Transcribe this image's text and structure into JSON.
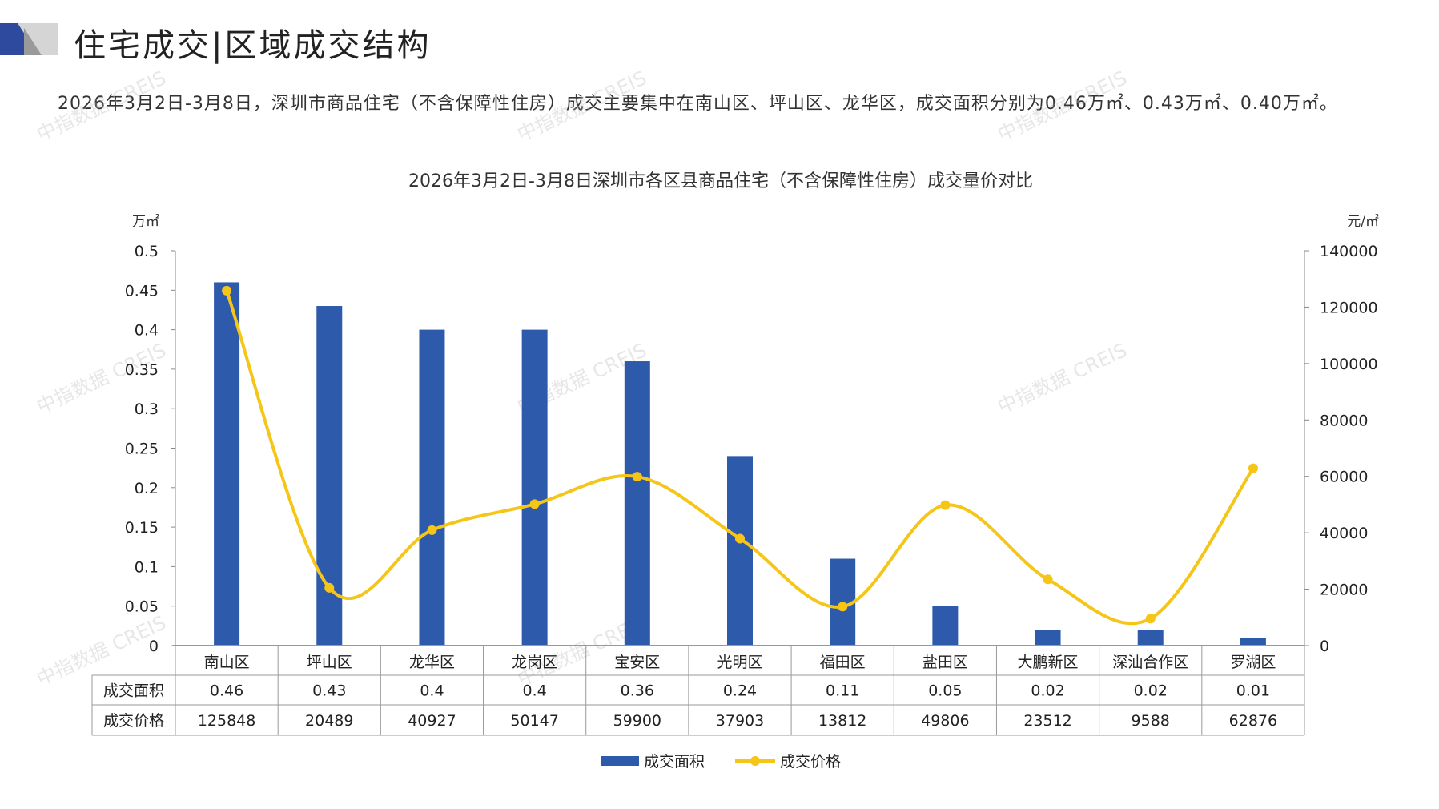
{
  "header": {
    "title": "住宅成交|区域成交结构"
  },
  "paragraph": "2026年3月2日-3月8日，深圳市商品住宅（不含保障性住房）成交主要集中在南山区、坪山区、龙华区，成交面积分别为0.46万㎡、0.43万㎡、0.40万㎡。",
  "watermark": "中指数据 CREIS",
  "colors": {
    "bar": "#2E5AAC",
    "line": "#F5C518",
    "logo_dark": "#2E4A9E",
    "logo_light": "#C8C8C8"
  },
  "chart_data": {
    "type": "bar+line",
    "title": "2026年3月2日-3月8日深圳市各区县商品住宅（不含保障性住房）成交量价对比",
    "ylabel_left": "万㎡",
    "ylabel_right": "元/㎡",
    "ylim_left": [
      0,
      0.5
    ],
    "yticks_left": [
      "0",
      "0.05",
      "0.1",
      "0.15",
      "0.2",
      "0.25",
      "0.3",
      "0.35",
      "0.4",
      "0.45",
      "0.5"
    ],
    "ylim_right": [
      0,
      140000
    ],
    "yticks_right": [
      "0",
      "20000",
      "40000",
      "60000",
      "80000",
      "100000",
      "120000",
      "140000"
    ],
    "categories": [
      "南山区",
      "坪山区",
      "龙华区",
      "龙岗区",
      "宝安区",
      "光明区",
      "福田区",
      "盐田区",
      "大鹏新区",
      "深汕合作区",
      "罗湖区"
    ],
    "series": [
      {
        "name": "成交面积",
        "type": "bar",
        "axis": "left",
        "values": [
          0.46,
          0.43,
          0.4,
          0.4,
          0.36,
          0.24,
          0.11,
          0.05,
          0.02,
          0.02,
          0.01
        ],
        "labels": [
          "0.46",
          "0.43",
          "0.4",
          "0.4",
          "0.36",
          "0.24",
          "0.11",
          "0.05",
          "0.02",
          "0.02",
          "0.01"
        ]
      },
      {
        "name": "成交价格",
        "type": "line",
        "axis": "right",
        "values": [
          125848,
          20489,
          40927,
          50147,
          59900,
          37903,
          13812,
          49806,
          23512,
          9588,
          62876
        ],
        "labels": [
          "125848",
          "20489",
          "40927",
          "50147",
          "59900",
          "37903",
          "13812",
          "49806",
          "23512",
          "9588",
          "62876"
        ]
      }
    ],
    "legend": "bottom"
  }
}
